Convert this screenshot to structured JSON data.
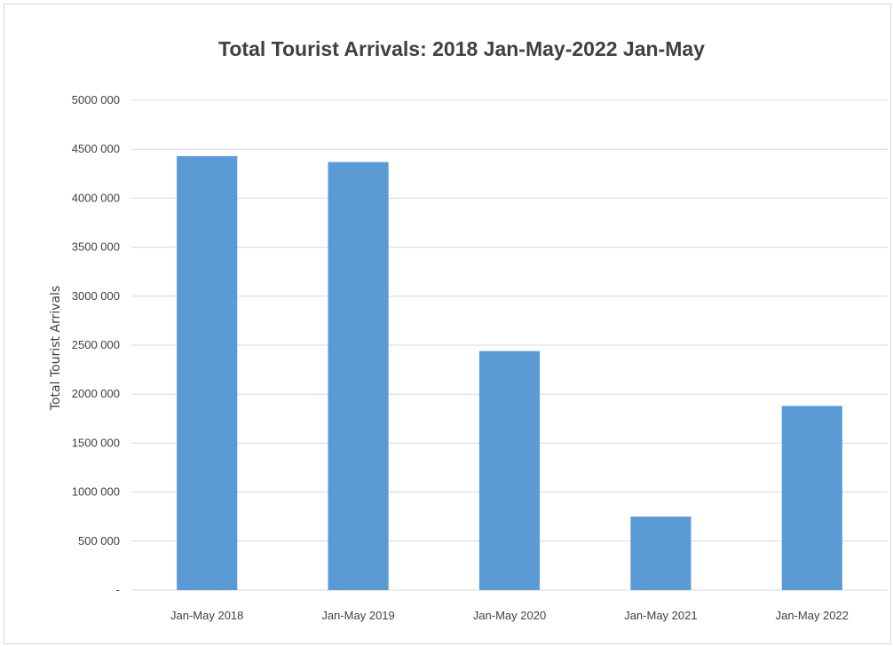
{
  "chart_data": {
    "type": "bar",
    "title": "Total Tourist Arrivals: 2018 Jan-May-2022 Jan-May",
    "xlabel": "",
    "ylabel": "Total Tourist Arrivals",
    "categories": [
      "Jan-May 2018",
      "Jan-May 2019",
      "Jan-May 2020",
      "Jan-May 2021",
      "Jan-May 2022"
    ],
    "values": [
      4430000,
      4370000,
      2440000,
      750000,
      1880000
    ],
    "ylim": [
      0,
      5000000
    ],
    "yticks": [
      0,
      500000,
      1000000,
      1500000,
      2000000,
      2500000,
      3000000,
      3500000,
      4000000,
      4500000,
      5000000
    ],
    "ytick_labels": [
      "-",
      "500 000",
      "1000 000",
      "1500 000",
      "2000 000",
      "2500 000",
      "3000 000",
      "3500 000",
      "4000 000",
      "4500 000",
      "5000 000"
    ],
    "grid": true,
    "legend": "none",
    "colors": {
      "bar": "#5b9bd5",
      "grid": "#d9d9d9",
      "text": "#404040"
    }
  }
}
